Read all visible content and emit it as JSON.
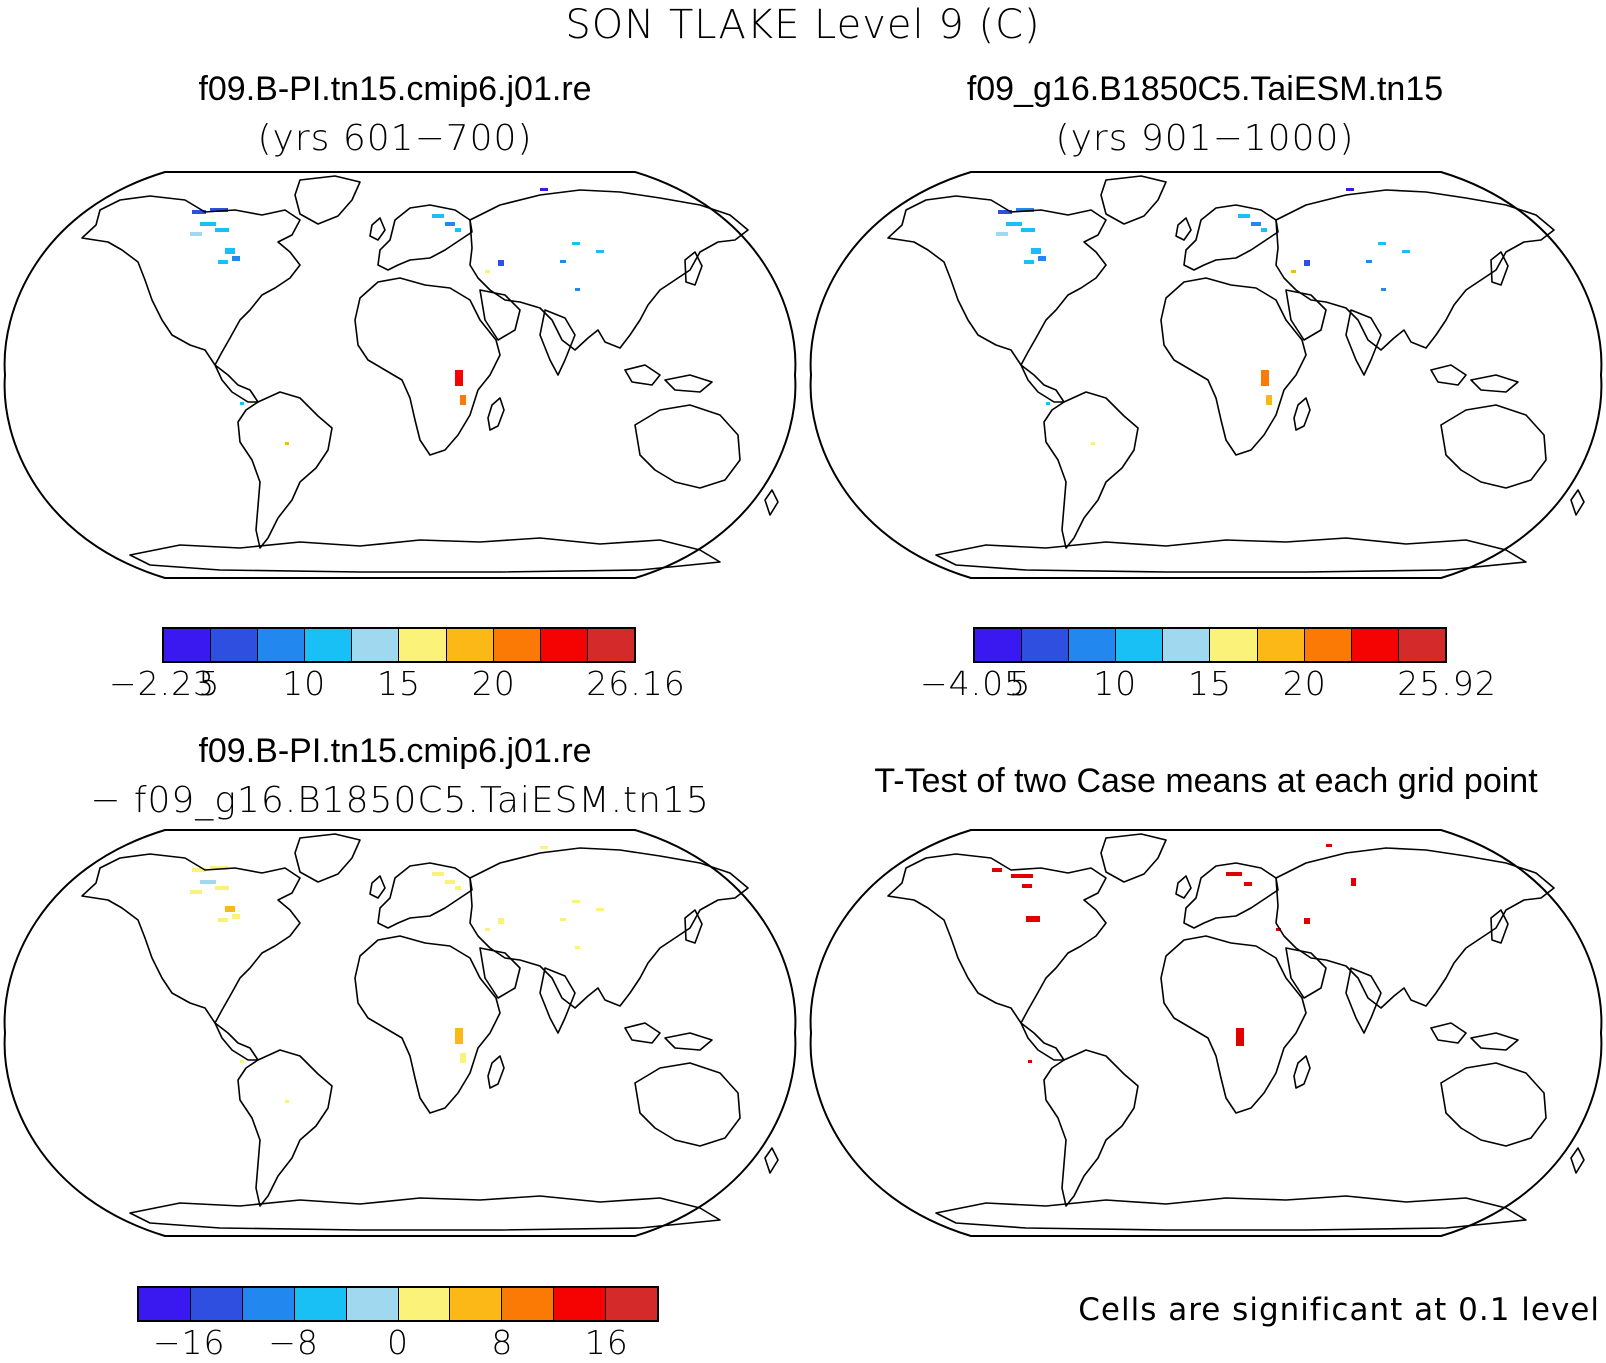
{
  "title": "SON TLAKE Level 9 (C)",
  "panels": [
    {
      "case": "f09.B-PI.tn15.cmip6.j01.re",
      "subtitle": "(yrs 601−700)"
    },
    {
      "case": "f09_g16.B1850C5.TaiESM.tn15",
      "subtitle": "(yrs 901−1000)"
    },
    {
      "case": "f09.B-PI.tn15.cmip6.j01.re",
      "subtitle": "− f09_g16.B1850C5.TaiESM.tn15"
    },
    {
      "case": "T-Test of two Case means at each grid point",
      "subtitle": ""
    }
  ],
  "colorbars": [
    {
      "labels": [
        "−2.23",
        "5",
        "10",
        "15",
        "20",
        "26.16"
      ],
      "label_index": [
        0,
        1,
        3,
        5,
        7,
        10
      ]
    },
    {
      "labels": [
        "−4.05",
        "5",
        "10",
        "15",
        "20",
        "25.92"
      ],
      "label_index": [
        0,
        1,
        3,
        5,
        7,
        10
      ]
    },
    {
      "labels": [
        "−16",
        "−8",
        "0",
        "8",
        "16"
      ],
      "label_index": [
        1,
        3,
        5,
        7,
        9
      ]
    }
  ],
  "palette": [
    "#3a19f0",
    "#2e4fe0",
    "#2288f0",
    "#19c0f5",
    "#a0d8f0",
    "#fbf27a",
    "#fbb816",
    "#fb7a05",
    "#f50303",
    "#d42a2a"
  ],
  "significance_note": "Cells are significant at 0.1 level",
  "colors": {
    "land_outline": "#000000",
    "significant": "#e00000"
  }
}
